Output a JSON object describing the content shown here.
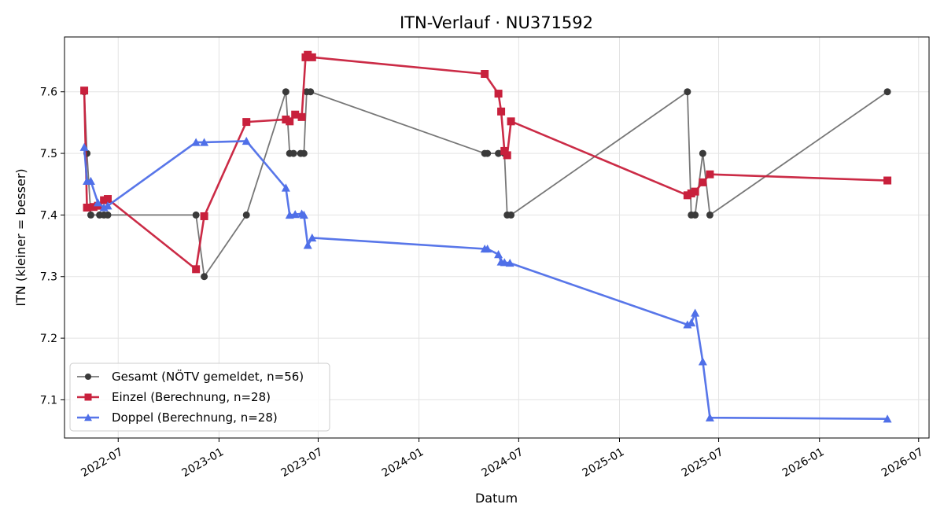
{
  "chart_data": {
    "type": "line",
    "title": "ITN-Verlauf · NU371592",
    "xlabel": "Datum",
    "ylabel": "ITN  (kleiner = besser)",
    "xlim": [
      "2022-03-25",
      "2026-07-20"
    ],
    "ylim": [
      7.038,
      7.689
    ],
    "x_ticks": [
      "2022-07",
      "2023-01",
      "2023-07",
      "2024-01",
      "2024-07",
      "2025-01",
      "2025-07",
      "2026-01",
      "2026-07"
    ],
    "y_ticks": [
      7.1,
      7.2,
      7.3,
      7.4,
      7.5,
      7.6
    ],
    "grid": true,
    "legend_position": "lower-left",
    "series": [
      {
        "name": "Gesamt (NÖTV gemeldet, n=56)",
        "color": "#555555",
        "marker": "circle",
        "points": [
          {
            "x": "2022-04-30",
            "y": 7.6
          },
          {
            "x": "2022-05-05",
            "y": 7.5
          },
          {
            "x": "2022-05-12",
            "y": 7.4
          },
          {
            "x": "2022-05-28",
            "y": 7.4
          },
          {
            "x": "2022-06-05",
            "y": 7.4
          },
          {
            "x": "2022-06-12",
            "y": 7.4
          },
          {
            "x": "2022-11-20",
            "y": 7.4
          },
          {
            "x": "2022-12-05",
            "y": 7.3
          },
          {
            "x": "2023-02-20",
            "y": 7.4
          },
          {
            "x": "2023-05-03",
            "y": 7.6
          },
          {
            "x": "2023-05-10",
            "y": 7.5
          },
          {
            "x": "2023-05-17",
            "y": 7.5
          },
          {
            "x": "2023-05-30",
            "y": 7.5
          },
          {
            "x": "2023-06-05",
            "y": 7.5
          },
          {
            "x": "2023-06-10",
            "y": 7.6
          },
          {
            "x": "2023-06-17",
            "y": 7.6
          },
          {
            "x": "2024-04-30",
            "y": 7.5
          },
          {
            "x": "2024-05-05",
            "y": 7.5
          },
          {
            "x": "2024-05-25",
            "y": 7.5
          },
          {
            "x": "2024-06-05",
            "y": 7.5
          },
          {
            "x": "2024-06-10",
            "y": 7.4
          },
          {
            "x": "2024-06-17",
            "y": 7.4
          },
          {
            "x": "2025-05-05",
            "y": 7.6
          },
          {
            "x": "2025-05-12",
            "y": 7.4
          },
          {
            "x": "2025-05-19",
            "y": 7.4
          },
          {
            "x": "2025-06-02",
            "y": 7.5
          },
          {
            "x": "2025-06-15",
            "y": 7.4
          },
          {
            "x": "2026-05-05",
            "y": 7.6
          }
        ]
      },
      {
        "name": "Einzel (Berechnung, n=28)",
        "color": "#c8203c",
        "marker": "square",
        "points": [
          {
            "x": "2022-04-30",
            "y": 7.602
          },
          {
            "x": "2022-05-05",
            "y": 7.412
          },
          {
            "x": "2022-05-17",
            "y": 7.413
          },
          {
            "x": "2022-05-25",
            "y": 7.415
          },
          {
            "x": "2022-06-05",
            "y": 7.424
          },
          {
            "x": "2022-06-12",
            "y": 7.426
          },
          {
            "x": "2022-11-20",
            "y": 7.312
          },
          {
            "x": "2022-12-05",
            "y": 7.398
          },
          {
            "x": "2023-02-20",
            "y": 7.551
          },
          {
            "x": "2023-05-03",
            "y": 7.555
          },
          {
            "x": "2023-05-10",
            "y": 7.552
          },
          {
            "x": "2023-05-20",
            "y": 7.563
          },
          {
            "x": "2023-06-01",
            "y": 7.559
          },
          {
            "x": "2023-06-08",
            "y": 7.656
          },
          {
            "x": "2023-06-12",
            "y": 7.66
          },
          {
            "x": "2023-06-20",
            "y": 7.656
          },
          {
            "x": "2024-04-30",
            "y": 7.629
          },
          {
            "x": "2024-05-25",
            "y": 7.597
          },
          {
            "x": "2024-05-30",
            "y": 7.568
          },
          {
            "x": "2024-06-05",
            "y": 7.504
          },
          {
            "x": "2024-06-10",
            "y": 7.497
          },
          {
            "x": "2024-06-17",
            "y": 7.552
          },
          {
            "x": "2025-05-05",
            "y": 7.432
          },
          {
            "x": "2025-05-12",
            "y": 7.435
          },
          {
            "x": "2025-05-19",
            "y": 7.438
          },
          {
            "x": "2025-06-02",
            "y": 7.453
          },
          {
            "x": "2025-06-15",
            "y": 7.466
          },
          {
            "x": "2026-05-05",
            "y": 7.456
          }
        ]
      },
      {
        "name": "Doppel (Berechnung, n=28)",
        "color": "#4f6fe8",
        "marker": "triangle",
        "points": [
          {
            "x": "2022-04-30",
            "y": 7.51
          },
          {
            "x": "2022-05-05",
            "y": 7.455
          },
          {
            "x": "2022-05-12",
            "y": 7.455
          },
          {
            "x": "2022-05-25",
            "y": 7.42
          },
          {
            "x": "2022-06-05",
            "y": 7.412
          },
          {
            "x": "2022-06-12",
            "y": 7.415
          },
          {
            "x": "2022-11-20",
            "y": 7.518
          },
          {
            "x": "2022-12-05",
            "y": 7.518
          },
          {
            "x": "2023-02-20",
            "y": 7.52
          },
          {
            "x": "2023-05-03",
            "y": 7.444
          },
          {
            "x": "2023-05-10",
            "y": 7.4
          },
          {
            "x": "2023-05-20",
            "y": 7.401
          },
          {
            "x": "2023-06-01",
            "y": 7.402
          },
          {
            "x": "2023-06-05",
            "y": 7.4
          },
          {
            "x": "2023-06-12",
            "y": 7.351
          },
          {
            "x": "2023-06-20",
            "y": 7.363
          },
          {
            "x": "2024-04-30",
            "y": 7.345
          },
          {
            "x": "2024-05-05",
            "y": 7.345
          },
          {
            "x": "2024-05-25",
            "y": 7.336
          },
          {
            "x": "2024-05-30",
            "y": 7.324
          },
          {
            "x": "2024-06-05",
            "y": 7.323
          },
          {
            "x": "2024-06-15",
            "y": 7.322
          },
          {
            "x": "2025-05-05",
            "y": 7.222
          },
          {
            "x": "2025-05-12",
            "y": 7.225
          },
          {
            "x": "2025-05-19",
            "y": 7.241
          },
          {
            "x": "2025-06-02",
            "y": 7.162
          },
          {
            "x": "2025-06-15",
            "y": 7.071
          },
          {
            "x": "2026-05-05",
            "y": 7.069
          }
        ]
      }
    ]
  }
}
